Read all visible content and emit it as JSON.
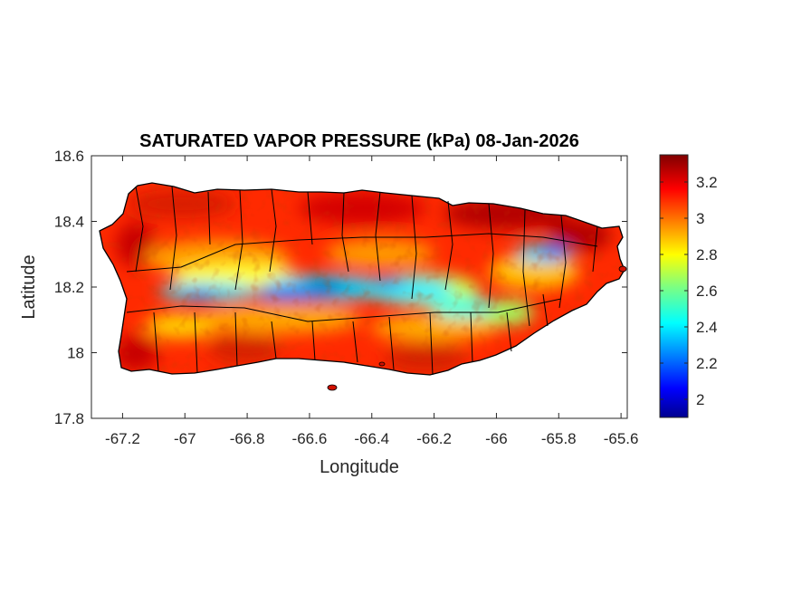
{
  "chart_data": {
    "type": "heatmap",
    "title": "SATURATED VAPOR PRESSURE (kPa) 08-Jan-2026",
    "xlabel": "Longitude",
    "ylabel": "Latitude",
    "xlim": [
      -67.3,
      -65.58
    ],
    "ylim": [
      17.8,
      18.6
    ],
    "xticks": [
      -67.2,
      -67,
      -66.8,
      -66.6,
      -66.4,
      -66.2,
      -66,
      -65.8,
      -65.6
    ],
    "xtick_labels": [
      "-67.2",
      "-67",
      "-66.8",
      "-66.6",
      "-66.4",
      "-66.2",
      "-66",
      "-65.8",
      "-65.6"
    ],
    "yticks": [
      17.8,
      18,
      18.2,
      18.4,
      18.6
    ],
    "ytick_labels": [
      "17.8",
      "18",
      "18.2",
      "18.4",
      "18.6"
    ],
    "colorbar": {
      "colormap": "jet",
      "range": [
        1.9,
        3.35
      ],
      "ticks": [
        2,
        2.2,
        2.4,
        2.6,
        2.8,
        3,
        3.2
      ],
      "tick_labels": [
        "2",
        "2.2",
        "2.4",
        "2.6",
        "2.8",
        "3",
        "3.2"
      ]
    },
    "grid": false
  }
}
